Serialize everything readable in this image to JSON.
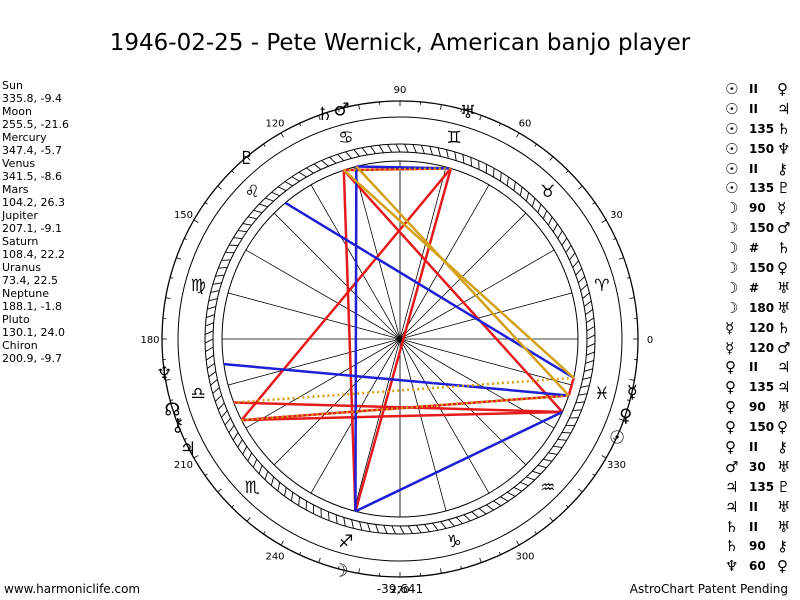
{
  "title": "1946-02-25 - Pete Wernick, American banjo player",
  "planets": [
    {
      "name": "Sun",
      "values": "335.8, -9.4",
      "lon": 335.8,
      "glyph": "☉"
    },
    {
      "name": "Moon",
      "values": "255.5, -21.6",
      "lon": 255.5,
      "glyph": "☽"
    },
    {
      "name": "Mercury",
      "values": "347.4, -5.7",
      "lon": 347.4,
      "glyph": "☿"
    },
    {
      "name": "Venus",
      "values": "341.5, -8.6",
      "lon": 341.5,
      "glyph": "♀"
    },
    {
      "name": "Mars",
      "values": "104.2, 26.3",
      "lon": 104.2,
      "glyph": "♂"
    },
    {
      "name": "Jupiter",
      "values": "207.1, -9.1",
      "lon": 207.1,
      "glyph": "♃"
    },
    {
      "name": "Saturn",
      "values": "108.4, 22.2",
      "lon": 108.4,
      "glyph": "♄"
    },
    {
      "name": "Uranus",
      "values": "73.4, 22.5",
      "lon": 73.4,
      "glyph": "♅"
    },
    {
      "name": "Neptune",
      "values": "188.1, -1.8",
      "lon": 188.1,
      "glyph": "♆"
    },
    {
      "name": "Pluto",
      "values": "130.1, 24.0",
      "lon": 130.1,
      "glyph": "♇"
    },
    {
      "name": "Chiron",
      "values": "200.9, -9.7",
      "lon": 200.9,
      "glyph": "⚷"
    }
  ],
  "node": {
    "glyph": "☊",
    "lon": 197
  },
  "degree_labels": [
    "0",
    "30",
    "60",
    "90",
    "120",
    "150",
    "180",
    "210",
    "240",
    "270",
    "300",
    "330"
  ],
  "zodiac_signs": [
    "♈",
    "♉",
    "♊",
    "♋",
    "♌",
    "♍",
    "♎",
    "♏",
    "♐",
    "♑",
    "♒",
    "♓"
  ],
  "aspects": [
    {
      "p1": "☉",
      "kind": "II",
      "p2": "♀"
    },
    {
      "p1": "☉",
      "kind": "II",
      "p2": "♃"
    },
    {
      "p1": "☉",
      "kind": "135",
      "p2": "♄"
    },
    {
      "p1": "☉",
      "kind": "150",
      "p2": "♆"
    },
    {
      "p1": "☉",
      "kind": "II",
      "p2": "⚷"
    },
    {
      "p1": "☉",
      "kind": "135",
      "p2": "♇"
    },
    {
      "p1": "☽",
      "kind": "90",
      "p2": "☿"
    },
    {
      "p1": "☽",
      "kind": "150",
      "p2": "♂"
    },
    {
      "p1": "☽",
      "kind": "#",
      "p2": "♄"
    },
    {
      "p1": "☽",
      "kind": "150",
      "p2": "♀"
    },
    {
      "p1": "☽",
      "kind": "#",
      "p2": "♅"
    },
    {
      "p1": "☽",
      "kind": "180",
      "p2": "♅"
    },
    {
      "p1": "☿",
      "kind": "120",
      "p2": "♄"
    },
    {
      "p1": "☿",
      "kind": "120",
      "p2": "♂"
    },
    {
      "p1": "♀",
      "kind": "II",
      "p2": "♃"
    },
    {
      "p1": "♀",
      "kind": "135",
      "p2": "♃"
    },
    {
      "p1": "♀",
      "kind": "90",
      "p2": "♅"
    },
    {
      "p1": "♀",
      "kind": "150",
      "p2": "♀"
    },
    {
      "p1": "♀",
      "kind": "II",
      "p2": "⚷"
    },
    {
      "p1": "♂",
      "kind": "30",
      "p2": "♅"
    },
    {
      "p1": "♃",
      "kind": "135",
      "p2": "♇"
    },
    {
      "p1": "♃",
      "kind": "II",
      "p2": "♅"
    },
    {
      "p1": "♄",
      "kind": "II",
      "p2": "♅"
    },
    {
      "p1": "♄",
      "kind": "90",
      "p2": "⚷"
    },
    {
      "p1": "♆",
      "kind": "60",
      "p2": "♀"
    }
  ],
  "colors": {
    "red": "#e41a1c",
    "blue": "#1f1fd6",
    "gold": "#d4a017"
  },
  "footer": {
    "left": "www.harmoniclife.com",
    "center": "-39,641",
    "right": "AstroChart Patent Pending"
  }
}
